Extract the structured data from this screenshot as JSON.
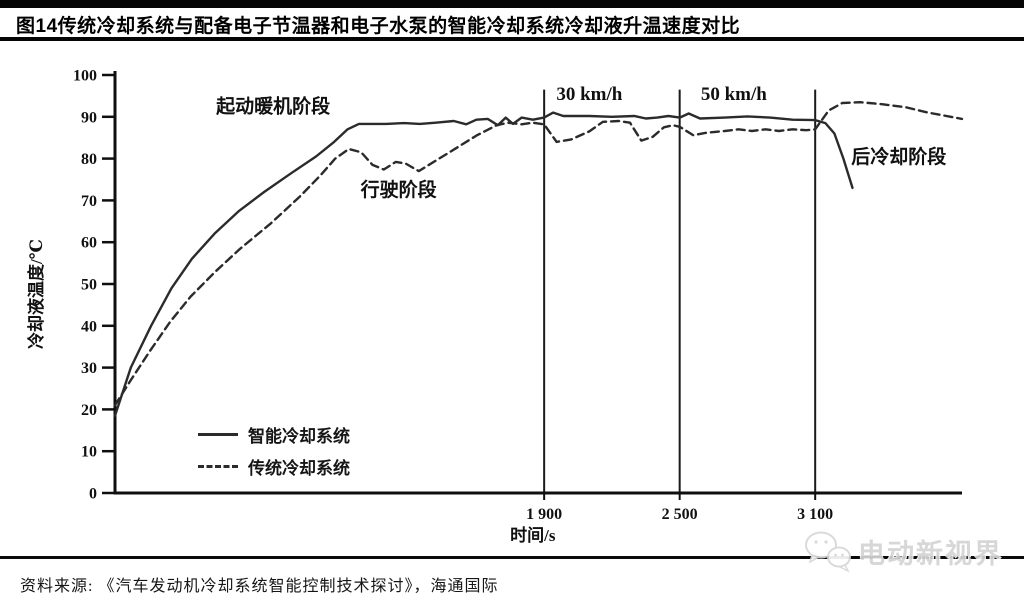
{
  "title": "图14传统冷却系统与配备电子节温器和电子水泵的智能冷却系统冷却液升温速度对比",
  "source_line": "资料来源: 《汽车发动机冷却系统智能控制技术探讨》，海通国际",
  "watermark": {
    "icon": "wechat-bubbles-icon",
    "text": "电动新视界"
  },
  "chart_data": {
    "type": "line",
    "title": "",
    "xlabel": "时间/s",
    "ylabel": "冷却液温度/℃",
    "xlim": [
      0,
      3750
    ],
    "ylim": [
      0,
      100
    ],
    "grid": false,
    "legend_position": "lower-left-inside",
    "y_ticks": [
      0,
      10,
      20,
      30,
      40,
      50,
      60,
      70,
      80,
      90,
      100
    ],
    "x_ticks": [
      {
        "value": 1900,
        "label": "1 900"
      },
      {
        "value": 2500,
        "label": "2 500"
      },
      {
        "value": 3100,
        "label": "3 100"
      }
    ],
    "reference_lines_x": [
      1900,
      2500,
      3100
    ],
    "annotations": [
      {
        "text": "起动暖机阶段",
        "t": 700,
        "temp": 91
      },
      {
        "text": "行驶阶段",
        "t": 1256,
        "temp": 71
      },
      {
        "text": "30 km/h",
        "t": 2100,
        "temp": 94
      },
      {
        "text": "50 km/h",
        "t": 2740,
        "temp": 94
      },
      {
        "text": "后冷却阶段",
        "t": 3470,
        "temp": 79
      }
    ],
    "legend": [
      {
        "name": "智能冷却系统",
        "style": "solid"
      },
      {
        "name": "传统冷却系统",
        "style": "dashed"
      }
    ],
    "line_color": "#2b2b2b",
    "series": [
      {
        "name": "智能冷却系统",
        "style": "solid",
        "points": [
          [
            0,
            18.5
          ],
          [
            70,
            30
          ],
          [
            160,
            40
          ],
          [
            250,
            49
          ],
          [
            340,
            56
          ],
          [
            440,
            62
          ],
          [
            550,
            67.5
          ],
          [
            660,
            72
          ],
          [
            780,
            76.5
          ],
          [
            890,
            80.5
          ],
          [
            970,
            84
          ],
          [
            1030,
            87
          ],
          [
            1080,
            88.3
          ],
          [
            1130,
            88.3
          ],
          [
            1200,
            88.3
          ],
          [
            1280,
            88.5
          ],
          [
            1350,
            88.3
          ],
          [
            1420,
            88.6
          ],
          [
            1500,
            89
          ],
          [
            1555,
            88.2
          ],
          [
            1600,
            89.3
          ],
          [
            1650,
            89.5
          ],
          [
            1695,
            88
          ],
          [
            1730,
            89.8
          ],
          [
            1762,
            88.3
          ],
          [
            1800,
            89.8
          ],
          [
            1850,
            89.3
          ],
          [
            1900,
            89.8
          ],
          [
            1940,
            91
          ],
          [
            1985,
            90.2
          ],
          [
            2100,
            90.2
          ],
          [
            2200,
            90
          ],
          [
            2300,
            90.2
          ],
          [
            2350,
            89.6
          ],
          [
            2400,
            89.8
          ],
          [
            2450,
            90.2
          ],
          [
            2500,
            89.8
          ],
          [
            2540,
            90.8
          ],
          [
            2590,
            89.6
          ],
          [
            2700,
            89.8
          ],
          [
            2800,
            90.1
          ],
          [
            2900,
            89.8
          ],
          [
            3000,
            89.3
          ],
          [
            3100,
            89.2
          ],
          [
            3145,
            88.5
          ],
          [
            3185,
            86
          ],
          [
            3225,
            80
          ],
          [
            3265,
            73
          ]
        ]
      },
      {
        "name": "传统冷却系统",
        "style": "dashed",
        "points": [
          [
            0,
            21
          ],
          [
            70,
            27
          ],
          [
            155,
            34
          ],
          [
            245,
            41
          ],
          [
            335,
            47
          ],
          [
            445,
            53
          ],
          [
            555,
            58.5
          ],
          [
            690,
            64.5
          ],
          [
            820,
            71
          ],
          [
            910,
            76
          ],
          [
            975,
            80
          ],
          [
            1035,
            82.3
          ],
          [
            1090,
            81.5
          ],
          [
            1140,
            78.5
          ],
          [
            1190,
            77.4
          ],
          [
            1243,
            79.2
          ],
          [
            1287,
            78.8
          ],
          [
            1345,
            77
          ],
          [
            1420,
            79.5
          ],
          [
            1510,
            82.5
          ],
          [
            1600,
            85.5
          ],
          [
            1690,
            88
          ],
          [
            1740,
            88.6
          ],
          [
            1800,
            88.2
          ],
          [
            1850,
            88.6
          ],
          [
            1900,
            88.2
          ],
          [
            1955,
            84
          ],
          [
            2020,
            84.6
          ],
          [
            2100,
            86.5
          ],
          [
            2160,
            88.8
          ],
          [
            2230,
            89
          ],
          [
            2280,
            88.6
          ],
          [
            2330,
            84.3
          ],
          [
            2380,
            85.2
          ],
          [
            2430,
            87.5
          ],
          [
            2470,
            88
          ],
          [
            2500,
            87.6
          ],
          [
            2560,
            85.6
          ],
          [
            2620,
            86.2
          ],
          [
            2700,
            86.6
          ],
          [
            2760,
            87
          ],
          [
            2820,
            86.6
          ],
          [
            2880,
            87
          ],
          [
            2940,
            86.6
          ],
          [
            3000,
            87
          ],
          [
            3060,
            86.8
          ],
          [
            3100,
            87
          ],
          [
            3160,
            91.5
          ],
          [
            3220,
            93.3
          ],
          [
            3300,
            93.5
          ],
          [
            3400,
            93
          ],
          [
            3500,
            92.3
          ],
          [
            3600,
            91
          ],
          [
            3700,
            90
          ],
          [
            3750,
            89.5
          ]
        ]
      }
    ]
  }
}
